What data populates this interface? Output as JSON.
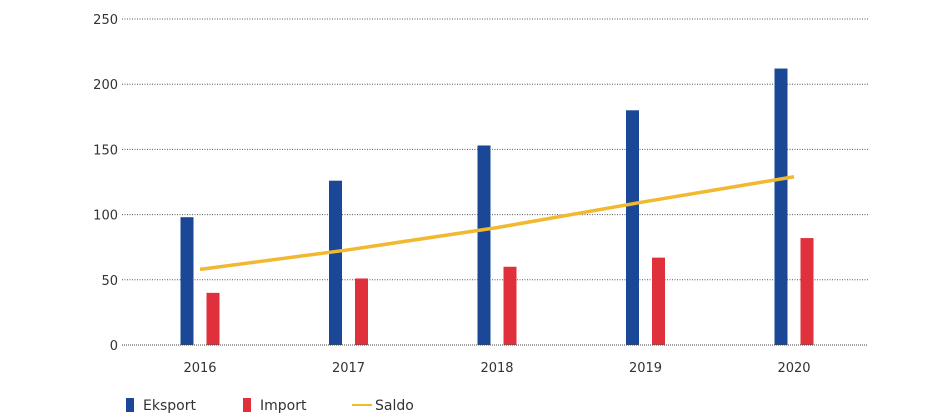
{
  "chart_data": {
    "type": "bar",
    "categories": [
      "2016",
      "2017",
      "2018",
      "2019",
      "2020"
    ],
    "series": [
      {
        "name": "Eksport",
        "type": "bar",
        "color": "#1a4796",
        "values": [
          98,
          126,
          153,
          180,
          212
        ]
      },
      {
        "name": "Import",
        "type": "bar",
        "color": "#e0303b",
        "values": [
          40,
          51,
          60,
          67,
          82
        ]
      },
      {
        "name": "Saldo",
        "type": "line",
        "color": "#f0b92f",
        "values": [
          58,
          73,
          90,
          110,
          129
        ]
      }
    ],
    "y_ticks": [
      "0",
      "50",
      "100",
      "150",
      "200",
      "250"
    ],
    "ylim": [
      0,
      250
    ],
    "grid": "horizontal dotted",
    "legend_position": "bottom-left",
    "title": "",
    "xlabel": "",
    "ylabel": ""
  }
}
